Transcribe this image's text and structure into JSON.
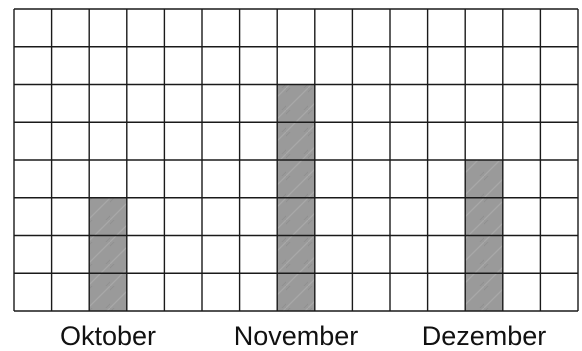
{
  "chart_data": {
    "type": "bar",
    "title": "",
    "xlabel": "",
    "ylabel": "",
    "categories": [
      "Oktober",
      "November",
      "Dezember"
    ],
    "values": [
      3,
      6,
      4
    ],
    "ylim": [
      0,
      8
    ],
    "grid": true,
    "colors": {
      "bar": "#9a9a9a",
      "grid": "#1a1a1a",
      "background": "#ffffff"
    }
  }
}
